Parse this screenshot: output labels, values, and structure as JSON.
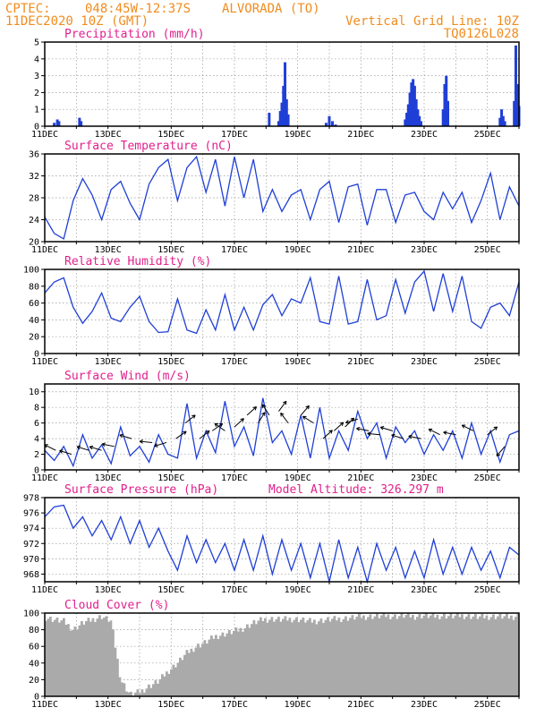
{
  "header": {
    "source": "CPTEC:",
    "coords": "048:45W-12:37S",
    "location": "ALVORADA (TO)",
    "datetime": "11DEC2020 10Z (GMT)",
    "grid_note": "Vertical Grid Line: 10Z",
    "code": "TQ0126L028"
  },
  "colors": {
    "series": "#1f3fd6",
    "title": "#e0208c",
    "header": "#f08c20",
    "cloud": "#aaaaaa"
  },
  "x_axis": {
    "day_start": 11,
    "day_end": 26,
    "tick_days": [
      11,
      13,
      15,
      17,
      19,
      21,
      23,
      25
    ],
    "tick_labels": [
      "11DEC",
      "13DEC",
      "15DEC",
      "17DEC",
      "19DEC",
      "21DEC",
      "23DEC",
      "25DEC"
    ],
    "grid_days": [
      11,
      12,
      13,
      14,
      15,
      16,
      17,
      18,
      19,
      20,
      21,
      22,
      23,
      24,
      25,
      26
    ]
  },
  "chart_data": [
    {
      "id": "precip",
      "type": "bar",
      "title": "Precipitation  (mm/h)",
      "ylim": [
        0,
        5
      ],
      "yticks": [
        0,
        1,
        2,
        3,
        4,
        5
      ],
      "x": [
        11.3,
        11.4,
        11.45,
        12.1,
        12.15,
        18.1,
        18.4,
        18.45,
        18.5,
        18.55,
        18.6,
        18.65,
        18.7,
        19.9,
        20.0,
        20.1,
        20.2,
        22.4,
        22.45,
        22.5,
        22.55,
        22.6,
        22.65,
        22.7,
        22.75,
        22.8,
        22.85,
        22.9,
        23.6,
        23.65,
        23.7,
        23.75,
        25.4,
        25.45,
        25.5,
        25.55,
        25.85,
        25.9,
        25.95,
        26.0
      ],
      "values": [
        0.2,
        0.4,
        0.3,
        0.5,
        0.3,
        0.8,
        0.3,
        0.9,
        1.4,
        2.4,
        3.8,
        1.6,
        0.7,
        0.2,
        0.6,
        0.3,
        0.1,
        0.4,
        0.8,
        1.3,
        2.0,
        2.6,
        2.8,
        2.4,
        1.6,
        1.0,
        0.6,
        0.3,
        1.0,
        2.5,
        3.0,
        1.5,
        0.5,
        1.0,
        0.6,
        0.3,
        1.5,
        4.8,
        2.5,
        1.2
      ]
    },
    {
      "id": "temp",
      "type": "line",
      "title": "Surface Temperature (nC)",
      "ylim": [
        20,
        36
      ],
      "yticks": [
        20,
        24,
        28,
        32,
        36
      ],
      "x": [
        11.0,
        11.3,
        11.6,
        11.9,
        12.2,
        12.5,
        12.8,
        13.1,
        13.4,
        13.7,
        14.0,
        14.3,
        14.6,
        14.9,
        15.2,
        15.5,
        15.8,
        16.1,
        16.4,
        16.7,
        17.0,
        17.3,
        17.6,
        17.9,
        18.2,
        18.5,
        18.8,
        19.1,
        19.4,
        19.7,
        20.0,
        20.3,
        20.6,
        20.9,
        21.2,
        21.5,
        21.8,
        22.1,
        22.4,
        22.7,
        23.0,
        23.3,
        23.6,
        23.9,
        24.2,
        24.5,
        24.8,
        25.1,
        25.4,
        25.7,
        26.0
      ],
      "values": [
        24.5,
        21.5,
        20.5,
        27.5,
        31.5,
        28.5,
        24.0,
        29.5,
        31.0,
        27.0,
        24.0,
        30.5,
        33.5,
        35.0,
        27.5,
        33.5,
        35.5,
        29.0,
        35.0,
        26.5,
        35.5,
        28.0,
        35.0,
        25.5,
        29.5,
        25.5,
        28.5,
        29.5,
        24.0,
        29.5,
        31.0,
        23.5,
        30.0,
        30.5,
        23.0,
        29.5,
        29.5,
        23.5,
        28.5,
        29.0,
        25.5,
        24.0,
        29.0,
        26.0,
        29.0,
        23.5,
        27.5,
        32.5,
        24.0,
        30.0,
        26.5
      ]
    },
    {
      "id": "rh",
      "type": "line",
      "title": "Relative Humidity (%)",
      "ylim": [
        0,
        100
      ],
      "yticks": [
        0,
        20,
        40,
        60,
        80,
        100
      ],
      "x": [
        11.0,
        11.3,
        11.6,
        11.9,
        12.2,
        12.5,
        12.8,
        13.1,
        13.4,
        13.7,
        14.0,
        14.3,
        14.6,
        14.9,
        15.2,
        15.5,
        15.8,
        16.1,
        16.4,
        16.7,
        17.0,
        17.3,
        17.6,
        17.9,
        18.2,
        18.5,
        18.8,
        19.1,
        19.4,
        19.7,
        20.0,
        20.3,
        20.6,
        20.9,
        21.2,
        21.5,
        21.8,
        22.1,
        22.4,
        22.7,
        23.0,
        23.3,
        23.6,
        23.9,
        24.2,
        24.5,
        24.8,
        25.1,
        25.4,
        25.7,
        26.0
      ],
      "values": [
        72,
        85,
        90,
        55,
        36,
        50,
        72,
        42,
        38,
        55,
        68,
        38,
        25,
        26,
        65,
        28,
        24,
        52,
        28,
        70,
        28,
        55,
        28,
        58,
        70,
        45,
        65,
        60,
        90,
        38,
        35,
        92,
        35,
        38,
        88,
        40,
        45,
        88,
        48,
        85,
        98,
        50,
        95,
        50,
        92,
        38,
        30,
        55,
        60,
        45,
        85
      ]
    },
    {
      "id": "wind",
      "type": "line",
      "title": "Surface Wind (m/s)",
      "ylim": [
        0,
        11
      ],
      "yticks": [
        0,
        2,
        4,
        6,
        8,
        10
      ],
      "x": [
        11.0,
        11.3,
        11.6,
        11.9,
        12.2,
        12.5,
        12.8,
        13.1,
        13.4,
        13.7,
        14.0,
        14.3,
        14.6,
        14.9,
        15.2,
        15.5,
        15.8,
        16.1,
        16.4,
        16.7,
        17.0,
        17.3,
        17.6,
        17.9,
        18.2,
        18.5,
        18.8,
        19.1,
        19.4,
        19.7,
        20.0,
        20.3,
        20.6,
        20.9,
        21.2,
        21.5,
        21.8,
        22.1,
        22.4,
        22.7,
        23.0,
        23.3,
        23.6,
        23.9,
        24.2,
        24.5,
        24.8,
        25.1,
        25.4,
        25.7,
        26.0
      ],
      "values": [
        2.5,
        1.2,
        3.0,
        0.5,
        4.5,
        1.5,
        3.2,
        0.8,
        5.5,
        1.8,
        3.0,
        1.0,
        4.5,
        2.0,
        1.5,
        8.5,
        1.5,
        5.0,
        2.2,
        8.8,
        3.0,
        5.5,
        1.8,
        9.2,
        3.5,
        5.0,
        2.0,
        7.0,
        1.5,
        8.0,
        1.5,
        5.0,
        2.5,
        7.5,
        4.0,
        6.0,
        1.5,
        5.5,
        3.5,
        5.0,
        2.0,
        4.5,
        2.5,
        5.0,
        1.5,
        6.0,
        2.0,
        5.0,
        1.0,
        4.5,
        5.0
      ],
      "vectors": {
        "x": [
          11.35,
          11.85,
          12.4,
          12.8,
          13.2,
          13.75,
          14.4,
          14.85,
          15.15,
          15.45,
          15.9,
          16.3,
          16.7,
          17.0,
          17.4,
          17.75,
          18.1,
          18.4,
          18.7,
          19.1,
          19.5,
          19.8,
          20.15,
          20.5,
          20.9,
          21.25,
          21.6,
          22.0,
          22.35,
          22.9,
          23.5,
          24.0,
          24.55,
          25.0,
          25.55
        ],
        "u": [
          -1,
          -1,
          -1,
          -1,
          -1,
          -1,
          -1,
          -1,
          1,
          1,
          1,
          0.7,
          -0.7,
          1,
          1,
          0.5,
          -0.5,
          0.6,
          -0.6,
          0.7,
          -0.8,
          1,
          1,
          0.8,
          -1,
          -1,
          -1,
          -1,
          -1,
          -1,
          -1,
          -1,
          -1,
          1,
          -0.5
        ],
        "v": [
          0.5,
          0.3,
          0.3,
          0.3,
          0.2,
          0.3,
          0.1,
          -0.3,
          0.7,
          0.8,
          0.8,
          0.5,
          0.5,
          0.9,
          0.9,
          0.8,
          0.8,
          0.8,
          0.8,
          0.8,
          0.5,
          0.9,
          0.9,
          0.8,
          -0.3,
          0.2,
          0.1,
          0.3,
          0.3,
          0.2,
          0.5,
          0.2,
          0.5,
          0.8,
          -0.6
        ],
        "speed": [
          2.5,
          2.0,
          2.5,
          2.5,
          3.0,
          4.0,
          3.5,
          3.5,
          4.0,
          6.0,
          4.0,
          5.0,
          5.0,
          5.5,
          7.0,
          6.0,
          7.0,
          7.5,
          6.0,
          7.0,
          6.0,
          4.0,
          5.0,
          5.5,
          6.5,
          5.0,
          4.5,
          5.0,
          4.0,
          4.0,
          4.5,
          4.5,
          5.0,
          4.5,
          3.0
        ]
      }
    },
    {
      "id": "pressure",
      "type": "line",
      "title": "Surface Pressure (hPa)",
      "annotation": "Model Altitude: 326.297  m",
      "ylim": [
        967,
        978
      ],
      "yticks": [
        968,
        970,
        972,
        974,
        976,
        978
      ],
      "x": [
        11.0,
        11.3,
        11.6,
        11.9,
        12.2,
        12.5,
        12.8,
        13.1,
        13.4,
        13.7,
        14.0,
        14.3,
        14.6,
        14.9,
        15.2,
        15.5,
        15.8,
        16.1,
        16.4,
        16.7,
        17.0,
        17.3,
        17.6,
        17.9,
        18.2,
        18.5,
        18.8,
        19.1,
        19.4,
        19.7,
        20.0,
        20.3,
        20.6,
        20.9,
        21.2,
        21.5,
        21.8,
        22.1,
        22.4,
        22.7,
        23.0,
        23.3,
        23.6,
        23.9,
        24.2,
        24.5,
        24.8,
        25.1,
        25.4,
        25.7,
        26.0
      ],
      "values": [
        975.5,
        976.8,
        977.0,
        974.0,
        975.5,
        973.0,
        975.0,
        972.5,
        975.5,
        972.0,
        975.0,
        971.5,
        974.0,
        971.0,
        968.5,
        973.0,
        969.5,
        972.5,
        969.5,
        972.0,
        968.5,
        972.5,
        968.5,
        973.0,
        968.0,
        972.5,
        968.5,
        972.0,
        967.5,
        972.0,
        967.0,
        972.5,
        967.5,
        971.5,
        967.0,
        972.0,
        968.5,
        971.5,
        967.5,
        971.0,
        967.5,
        972.5,
        968.0,
        971.5,
        968.0,
        971.5,
        968.5,
        971.0,
        967.5,
        971.5,
        970.5
      ]
    },
    {
      "id": "cloud",
      "type": "area",
      "title": "Cloud Cover (%)",
      "ylim": [
        0,
        100
      ],
      "yticks": [
        0,
        20,
        40,
        60,
        80,
        100
      ],
      "x": [
        11.0,
        11.3,
        11.6,
        11.9,
        12.2,
        12.5,
        12.8,
        13.1,
        13.4,
        13.7,
        14.0,
        14.3,
        14.6,
        14.9,
        15.2,
        15.5,
        15.8,
        16.1,
        16.4,
        16.7,
        17.0,
        17.3,
        17.6,
        17.9,
        18.2,
        18.5,
        18.8,
        19.1,
        19.4,
        19.7,
        20.0,
        20.3,
        20.6,
        20.9,
        21.2,
        21.5,
        21.8,
        22.1,
        22.4,
        22.7,
        23.0,
        23.3,
        23.6,
        23.9,
        24.2,
        24.5,
        24.8,
        25.1,
        25.4,
        25.7,
        26.0
      ],
      "values": [
        95,
        92,
        90,
        80,
        88,
        92,
        96,
        90,
        20,
        2,
        5,
        12,
        18,
        30,
        40,
        52,
        60,
        65,
        72,
        75,
        78,
        82,
        88,
        92,
        93,
        92,
        93,
        92,
        90,
        91,
        92,
        93,
        94,
        95,
        96,
        96,
        97,
        96,
        97,
        96,
        97,
        96,
        97,
        96,
        97,
        96,
        95,
        96,
        96,
        95,
        97
      ]
    }
  ]
}
